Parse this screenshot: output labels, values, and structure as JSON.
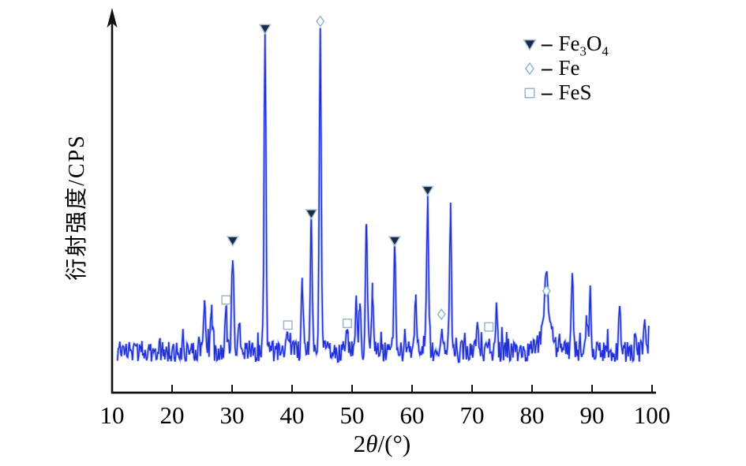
{
  "chart_data": {
    "type": "line",
    "description": "XRD diffraction pattern with phase markers",
    "xlabel": "2θ/(°)",
    "xlabel_parts": {
      "prefix": "2",
      "theta": "θ",
      "suffix": "/(°)"
    },
    "ylabel": "衍射强度/CPS",
    "x_ticks": [
      10,
      20,
      30,
      40,
      50,
      60,
      70,
      80,
      90,
      100
    ],
    "xlim": [
      10,
      100
    ],
    "x_data_range": [
      10.9,
      99.5
    ],
    "ylim": [
      0,
      1050
    ],
    "grid": false,
    "legend_position": "upper right",
    "baseline_intensity": 115,
    "noise_amplitude": 30,
    "noise_spike_probability": 0.1,
    "noise_spike_extra": 55,
    "noise_seed": 987654321,
    "trace_color": "#2230d8",
    "trace_halo_color": "#8d9ce8",
    "axis_color": "#111111",
    "marker_colors": {
      "triangle_fill": "#1b2b45",
      "triangle_stroke": "#a8c0d8",
      "diamond_stroke": "#8fb6d6",
      "square_stroke": "#9fb6c8"
    },
    "peaks": [
      {
        "two_theta": 25.4,
        "intensity": 260
      },
      {
        "two_theta": 26.6,
        "intensity": 215
      },
      {
        "two_theta": 29.0,
        "intensity": 225
      },
      {
        "two_theta": 30.1,
        "intensity": 390
      },
      {
        "two_theta": 31.2,
        "intensity": 210
      },
      {
        "two_theta": 35.5,
        "intensity": 980
      },
      {
        "two_theta": 39.3,
        "intensity": 155
      },
      {
        "two_theta": 41.7,
        "intensity": 290
      },
      {
        "two_theta": 43.2,
        "intensity": 465
      },
      {
        "two_theta": 44.7,
        "intensity": 1000
      },
      {
        "two_theta": 49.2,
        "intensity": 160
      },
      {
        "two_theta": 50.7,
        "intensity": 245
      },
      {
        "two_theta": 51.3,
        "intensity": 245
      },
      {
        "two_theta": 52.4,
        "intensity": 485
      },
      {
        "two_theta": 53.4,
        "intensity": 255
      },
      {
        "two_theta": 57.1,
        "intensity": 390
      },
      {
        "two_theta": 60.6,
        "intensity": 265
      },
      {
        "two_theta": 62.6,
        "intensity": 530
      },
      {
        "two_theta": 64.9,
        "intensity": 185
      },
      {
        "two_theta": 66.4,
        "intensity": 505
      },
      {
        "two_theta": 70.9,
        "intensity": 205
      },
      {
        "two_theta": 72.8,
        "intensity": 150
      },
      {
        "two_theta": 74.1,
        "intensity": 230
      },
      {
        "two_theta": 82.4,
        "intensity": 250,
        "width_deg": 0.3
      },
      {
        "two_theta": 82.4,
        "intensity": 190,
        "width_deg": 0.9
      },
      {
        "two_theta": 86.7,
        "intensity": 320
      },
      {
        "two_theta": 89.1,
        "intensity": 200
      },
      {
        "two_theta": 89.7,
        "intensity": 285
      },
      {
        "two_theta": 94.6,
        "intensity": 230
      },
      {
        "two_theta": 98.8,
        "intensity": 185
      }
    ],
    "phase_markers": [
      {
        "phase": "Fe3O4",
        "marker": "triangle-down",
        "positions": [
          30.1,
          35.5,
          43.2,
          57.1,
          62.6
        ]
      },
      {
        "phase": "Fe",
        "marker": "diamond",
        "positions": [
          44.7,
          64.9,
          82.4
        ]
      },
      {
        "phase": "FeS",
        "marker": "square",
        "positions": [
          29.0,
          39.3,
          49.2,
          72.8
        ]
      }
    ],
    "legend": [
      {
        "marker": "triangle-down",
        "separator": "–",
        "formula": "Fe_3O_4"
      },
      {
        "marker": "diamond",
        "separator": "–",
        "formula": "Fe"
      },
      {
        "marker": "square",
        "separator": "–",
        "formula": "FeS"
      }
    ]
  }
}
